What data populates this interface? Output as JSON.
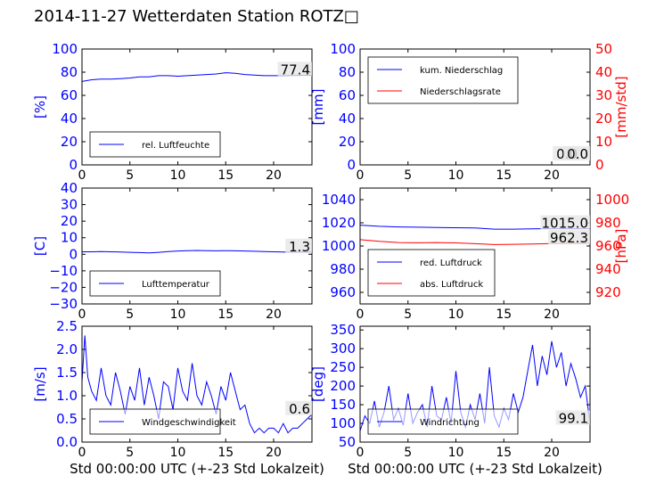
{
  "title": "2014-11-27 Wetterdaten Station ROTZ□",
  "colors": {
    "primary": "#0000ff",
    "secondary": "#ff0000",
    "frame": "#000000",
    "label_box": "#e6e6e6"
  },
  "chart_data": [
    {
      "id": "humidity",
      "type": "line",
      "xlim": [
        0,
        24
      ],
      "ylim": [
        0,
        100
      ],
      "xticks": [
        "0",
        "5",
        "10",
        "15",
        "20"
      ],
      "yticks": [
        "0",
        "20",
        "40",
        "60",
        "80",
        "100"
      ],
      "ylabel": "[%]",
      "xlabel": "",
      "grid": false,
      "legend_position": "lower-left",
      "last_value_label": "77.4",
      "series": [
        {
          "name": "rel. Luftfeuchte",
          "color": "#0000ff",
          "axis": "left",
          "x": [
            0,
            1,
            2,
            3,
            4,
            5,
            6,
            7,
            8,
            9,
            10,
            11,
            12,
            13,
            14,
            15,
            16,
            17,
            18,
            19,
            20,
            21,
            22,
            23,
            24
          ],
          "values": [
            72,
            73.5,
            74,
            74,
            74.5,
            75,
            76,
            76,
            77,
            77,
            76.5,
            77,
            77.5,
            78,
            78.5,
            79.5,
            79,
            78,
            77.5,
            77,
            77,
            77,
            77.2,
            77.3,
            77.4
          ]
        }
      ]
    },
    {
      "id": "precipitation",
      "type": "line",
      "xlim": [
        0,
        24
      ],
      "ylim": [
        0,
        100
      ],
      "ylim_right": [
        0,
        50
      ],
      "xticks": [
        "0",
        "5",
        "10",
        "15",
        "20"
      ],
      "yticks": [
        "0",
        "20",
        "40",
        "60",
        "80",
        "100"
      ],
      "yticks_right": [
        "0",
        "10",
        "20",
        "30",
        "40",
        "50"
      ],
      "ylabel": "[mm]",
      "ylabel_right": "[mm/std]",
      "xlabel": "",
      "grid": false,
      "legend_position": "upper-left",
      "last_value_labels": [
        "0.0",
        "0.0"
      ],
      "series": [
        {
          "name": "kum. Niederschlag",
          "color": "#0000ff",
          "axis": "left",
          "x": [
            0,
            24
          ],
          "values": [
            0,
            0
          ]
        },
        {
          "name": "Niederschlagsrate",
          "color": "#ff0000",
          "axis": "right",
          "x": [
            0,
            24
          ],
          "values": [
            0,
            0
          ]
        }
      ]
    },
    {
      "id": "temperature",
      "type": "line",
      "xlim": [
        0,
        24
      ],
      "ylim": [
        -30,
        40
      ],
      "xticks": [
        "0",
        "5",
        "10",
        "15",
        "20"
      ],
      "yticks": [
        "−30",
        "−20",
        "−10",
        "0",
        "10",
        "20",
        "30",
        "40"
      ],
      "ylabel": "[C]",
      "xlabel": "",
      "grid": false,
      "legend_position": "lower-left",
      "last_value_label": "1.3",
      "series": [
        {
          "name": "Lufttemperatur",
          "color": "#0000ff",
          "axis": "left",
          "x": [
            0,
            1,
            2,
            3,
            4,
            5,
            6,
            7,
            8,
            9,
            10,
            11,
            12,
            13,
            14,
            15,
            16,
            17,
            18,
            19,
            20,
            21,
            22,
            23,
            24
          ],
          "values": [
            1.5,
            1.5,
            1.6,
            1.5,
            1.4,
            1.2,
            1.0,
            0.8,
            1.2,
            1.6,
            2.0,
            2.2,
            2.3,
            2.2,
            2.1,
            2.2,
            2.1,
            2.0,
            1.8,
            1.6,
            1.5,
            1.4,
            1.4,
            1.3,
            1.3
          ]
        }
      ]
    },
    {
      "id": "pressure",
      "type": "line",
      "xlim": [
        0,
        24
      ],
      "ylim": [
        950,
        1050
      ],
      "ylim_right": [
        910,
        1010
      ],
      "xticks": [
        "0",
        "5",
        "10",
        "15",
        "20"
      ],
      "yticks": [
        "960",
        "980",
        "1000",
        "1020",
        "1040"
      ],
      "yticks_right": [
        "920",
        "940",
        "960",
        "980",
        "1000"
      ],
      "ylabel": "",
      "ylabel_right": "[hPa]",
      "xlabel": "",
      "grid": false,
      "legend_position": "lower-left",
      "last_value_labels": [
        "1015.0",
        "962.3"
      ],
      "series": [
        {
          "name": "red. Luftdruck",
          "color": "#0000ff",
          "axis": "left",
          "x": [
            0,
            2,
            4,
            6,
            8,
            10,
            12,
            14,
            16,
            18,
            20,
            22,
            24
          ],
          "values": [
            1018,
            1017,
            1016.5,
            1016.2,
            1016,
            1015.8,
            1015.5,
            1014.5,
            1014.5,
            1014.8,
            1015,
            1015,
            1015
          ]
        },
        {
          "name": "abs. Luftdruck",
          "color": "#ff0000",
          "axis": "right",
          "x": [
            0,
            2,
            4,
            6,
            8,
            10,
            12,
            14,
            16,
            18,
            20,
            22,
            24
          ],
          "values": [
            965.5,
            964,
            963,
            962.8,
            963,
            962.7,
            962,
            961.2,
            961.5,
            961.8,
            962.1,
            962.2,
            962.3
          ]
        }
      ]
    },
    {
      "id": "wind_speed",
      "type": "line",
      "xlim": [
        0,
        24
      ],
      "ylim": [
        0,
        2.5
      ],
      "xticks": [
        "0",
        "5",
        "10",
        "15",
        "20"
      ],
      "yticks": [
        "0.0",
        "0.5",
        "1.0",
        "1.5",
        "2.0",
        "2.5"
      ],
      "ylabel": "[m/s]",
      "xlabel": "Std 00:00:00 UTC (+-23 Std Lokalzeit)",
      "grid": false,
      "legend_position": "lower-left",
      "last_value_label": "0.6",
      "series": [
        {
          "name": "Windgeschwindigkeit",
          "color": "#0000ff",
          "axis": "left",
          "x": [
            0,
            0.3,
            0.6,
            1,
            1.5,
            2,
            2.5,
            3,
            3.5,
            4,
            4.5,
            5,
            5.5,
            6,
            6.5,
            7,
            7.5,
            8,
            8.5,
            9,
            9.5,
            10,
            10.5,
            11,
            11.5,
            12,
            12.5,
            13,
            13.5,
            14,
            14.5,
            15,
            15.5,
            16,
            16.5,
            17,
            17.5,
            18,
            18.5,
            19,
            19.5,
            20,
            20.5,
            21,
            21.5,
            22,
            22.5,
            23,
            23.5,
            24
          ],
          "values": [
            1.3,
            2.3,
            1.4,
            1.1,
            0.9,
            1.6,
            1.0,
            0.8,
            1.5,
            1.1,
            0.6,
            1.2,
            0.9,
            1.6,
            0.8,
            1.4,
            1.0,
            0.5,
            1.3,
            1.2,
            0.7,
            1.6,
            1.1,
            0.9,
            1.7,
            1.0,
            0.8,
            1.3,
            1.0,
            0.6,
            1.2,
            0.9,
            1.5,
            1.1,
            0.7,
            0.8,
            0.4,
            0.2,
            0.3,
            0.2,
            0.3,
            0.3,
            0.2,
            0.4,
            0.2,
            0.3,
            0.3,
            0.4,
            0.5,
            0.6
          ]
        }
      ]
    },
    {
      "id": "wind_direction",
      "type": "line",
      "xlim": [
        0,
        24
      ],
      "ylim": [
        50,
        360
      ],
      "xticks": [
        "0",
        "5",
        "10",
        "15",
        "20"
      ],
      "yticks": [
        "50",
        "100",
        "150",
        "200",
        "250",
        "300",
        "350"
      ],
      "ylabel": "[deg]",
      "xlabel": "Std 00:00:00 UTC (+-23 Std Lokalzeit)",
      "grid": false,
      "legend_position": "lower-left",
      "last_value_label": "99.1",
      "series": [
        {
          "name": "Windrichtung",
          "color": "#0000ff",
          "axis": "left",
          "x": [
            0,
            0.5,
            1,
            1.5,
            2,
            2.5,
            3,
            3.5,
            4,
            4.5,
            5,
            5.5,
            6,
            6.5,
            7,
            7.5,
            8,
            8.5,
            9,
            9.5,
            10,
            10.5,
            11,
            11.5,
            12,
            12.5,
            13,
            13.5,
            14,
            14.5,
            15,
            15.5,
            16,
            16.5,
            17,
            17.5,
            18,
            18.5,
            19,
            19.5,
            20,
            20.5,
            21,
            21.5,
            22,
            22.5,
            23,
            23.5,
            24
          ],
          "values": [
            80,
            120,
            100,
            160,
            90,
            130,
            200,
            110,
            140,
            95,
            180,
            100,
            130,
            150,
            90,
            200,
            120,
            110,
            170,
            100,
            240,
            130,
            90,
            150,
            110,
            180,
            100,
            250,
            120,
            90,
            140,
            110,
            180,
            130,
            170,
            240,
            310,
            200,
            280,
            230,
            320,
            250,
            290,
            200,
            260,
            220,
            170,
            200,
            99
          ]
        }
      ]
    }
  ]
}
